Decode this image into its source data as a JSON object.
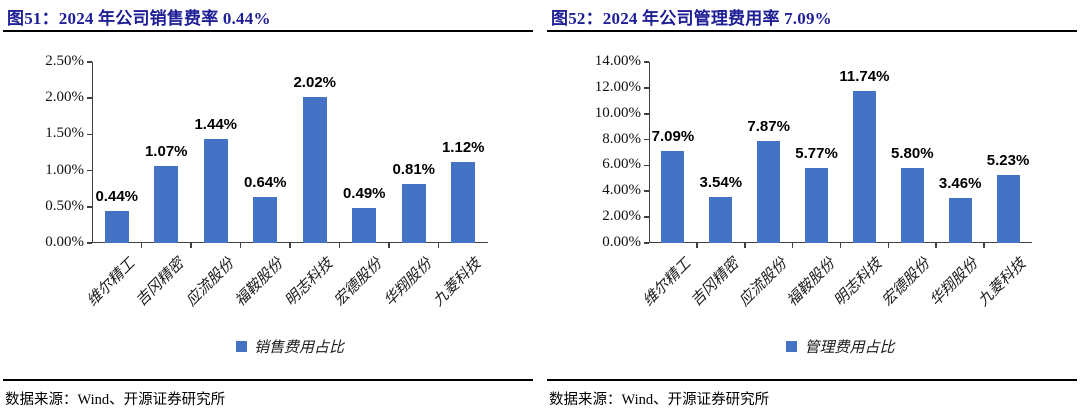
{
  "colors": {
    "bar": "#4472C4",
    "title": "#1E1E96",
    "axis": "#404040"
  },
  "chart_data": [
    {
      "type": "bar",
      "title": "图51：2024 年公司销售费率 0.44%",
      "categories": [
        "维尔精工",
        "吉冈精密",
        "应流股份",
        "福鞍股份",
        "明志科技",
        "宏德股份",
        "华翔股份",
        "九菱科技"
      ],
      "values": [
        0.44,
        1.07,
        1.44,
        0.64,
        2.02,
        0.49,
        0.81,
        1.12
      ],
      "value_labels": [
        "0.44%",
        "1.07%",
        "1.44%",
        "0.64%",
        "2.02%",
        "0.49%",
        "0.81%",
        "1.12%"
      ],
      "legend": "销售费用占比",
      "legend_position": "bottom",
      "xlabel": "",
      "ylabel": "",
      "ylim": [
        0,
        2.5
      ],
      "ytick_step": 0.5,
      "ytick_labels": [
        "0.00%",
        "0.50%",
        "1.00%",
        "1.50%",
        "2.00%",
        "2.50%"
      ],
      "grid": false,
      "source": "数据来源：Wind、开源证券研究所"
    },
    {
      "type": "bar",
      "title": "图52：2024 年公司管理费用率 7.09%",
      "categories": [
        "维尔精工",
        "吉冈精密",
        "应流股份",
        "福鞍股份",
        "明志科技",
        "宏德股份",
        "华翔股份",
        "九菱科技"
      ],
      "values": [
        7.09,
        3.54,
        7.87,
        5.77,
        11.74,
        5.8,
        3.46,
        5.23
      ],
      "value_labels": [
        "7.09%",
        "3.54%",
        "7.87%",
        "5.77%",
        "11.74%",
        "5.80%",
        "3.46%",
        "5.23%"
      ],
      "legend": "管理费用占比",
      "legend_position": "bottom",
      "xlabel": "",
      "ylabel": "",
      "ylim": [
        0,
        14
      ],
      "ytick_step": 2,
      "ytick_labels": [
        "0.00%",
        "2.00%",
        "4.00%",
        "6.00%",
        "8.00%",
        "10.00%",
        "12.00%",
        "14.00%"
      ],
      "grid": false,
      "source": "数据来源：Wind、开源证券研究所"
    }
  ]
}
